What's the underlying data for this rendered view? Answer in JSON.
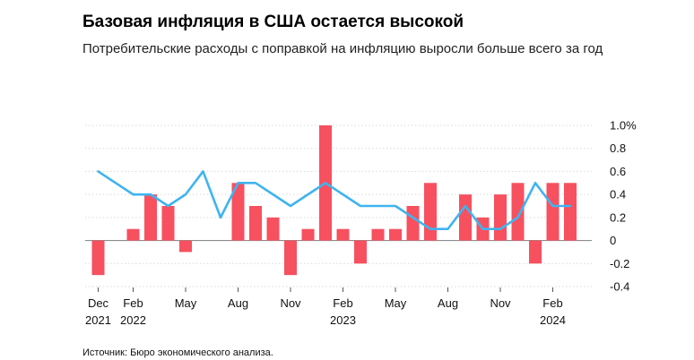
{
  "header": {
    "title": "Базовая инфляция в США остается высокой",
    "subtitle": "Потребительские расходы с поправкой на инфляцию выросли больше всего за год"
  },
  "footer": {
    "source": "Источник: Бюро экономического анализа."
  },
  "colors": {
    "bar": "#f7505f",
    "line": "#3fb4ef",
    "grid": "#d9d9d9",
    "zero": "#8c8c8c",
    "text": "#111111"
  },
  "chart_data": {
    "type": "bar",
    "categories": [
      "2021-12",
      "2022-01",
      "2022-02",
      "2022-03",
      "2022-04",
      "2022-05",
      "2022-06",
      "2022-07",
      "2022-08",
      "2022-09",
      "2022-10",
      "2022-11",
      "2022-12",
      "2023-01",
      "2023-02",
      "2023-03",
      "2023-04",
      "2023-05",
      "2023-06",
      "2023-07",
      "2023-08",
      "2023-09",
      "2023-10",
      "2023-11",
      "2023-12",
      "2024-01",
      "2024-02",
      "2024-03"
    ],
    "series": [
      {
        "type": "bar",
        "values": [
          -0.3,
          0.0,
          0.1,
          0.4,
          0.3,
          -0.1,
          0.0,
          0.0,
          0.5,
          0.3,
          0.2,
          -0.3,
          0.1,
          1.0,
          0.1,
          -0.2,
          0.1,
          0.1,
          0.3,
          0.5,
          0.0,
          0.4,
          0.2,
          0.4,
          0.5,
          -0.2,
          0.5,
          0.5
        ]
      },
      {
        "type": "line",
        "values": [
          0.6,
          0.5,
          0.4,
          0.4,
          0.3,
          0.4,
          0.6,
          0.2,
          0.5,
          0.5,
          0.4,
          0.3,
          0.4,
          0.5,
          0.4,
          0.3,
          0.3,
          0.3,
          0.2,
          0.1,
          0.1,
          0.3,
          0.1,
          0.1,
          0.2,
          0.5,
          0.3,
          0.3
        ]
      }
    ],
    "y_axis": {
      "ylim": [
        -0.4,
        1.0
      ],
      "ticks": [
        1.0,
        0.8,
        0.6,
        0.4,
        0.2,
        0,
        -0.2,
        -0.4
      ],
      "tick_labels": [
        "1.0%",
        "0.8",
        "0.6",
        "0.4",
        "0.2",
        "0",
        "-0.2",
        "-0.4"
      ],
      "position": "right"
    },
    "x_axis": {
      "ticks": [
        {
          "index": 0,
          "label": "Dec",
          "year": "2021"
        },
        {
          "index": 2,
          "label": "Feb",
          "year": "2022"
        },
        {
          "index": 5,
          "label": "May",
          "year": ""
        },
        {
          "index": 8,
          "label": "Aug",
          "year": ""
        },
        {
          "index": 11,
          "label": "Nov",
          "year": ""
        },
        {
          "index": 14,
          "label": "Feb",
          "year": "2023"
        },
        {
          "index": 17,
          "label": "May",
          "year": ""
        },
        {
          "index": 20,
          "label": "Aug",
          "year": ""
        },
        {
          "index": 23,
          "label": "Nov",
          "year": ""
        },
        {
          "index": 26,
          "label": "Feb",
          "year": "2024"
        }
      ]
    },
    "grid": true,
    "legend": "none"
  }
}
